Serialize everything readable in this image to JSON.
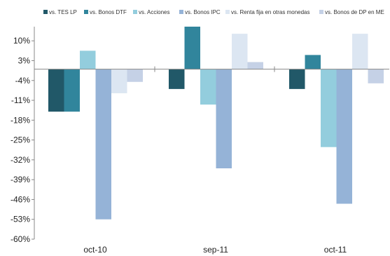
{
  "chart_data": {
    "type": "bar",
    "categories": [
      "oct-10",
      "sep-11",
      "oct-11"
    ],
    "series": [
      {
        "name": "vs. TES LP",
        "color": "#215868",
        "values": [
          -15,
          -7,
          -7
        ]
      },
      {
        "name": "vs. Bonos DTF",
        "color": "#31859c",
        "values": [
          -15,
          15,
          5
        ]
      },
      {
        "name": "vs. Acciones",
        "color": "#93cddd",
        "values": [
          6.5,
          -12.5,
          -27.5
        ]
      },
      {
        "name": "vs. Bonos IPC",
        "color": "#95b3d7",
        "values": [
          -53,
          -35,
          -47.5
        ]
      },
      {
        "name": "vs. Renta fija en otras monedas",
        "color": "#dce6f2",
        "values": [
          -8.5,
          12.5,
          12.5
        ]
      },
      {
        "name": "vs. Bonos de DP en ME",
        "color": "#c5d1e6",
        "values": [
          -4.5,
          2.5,
          -5
        ]
      }
    ],
    "yticks": [
      10,
      3,
      -4,
      -11,
      -18,
      -25,
      -32,
      -39,
      -46,
      -53,
      -60
    ],
    "ytick_labels": [
      "10%",
      "3%",
      "-4%",
      "-11%",
      "-18%",
      "-25%",
      "-32%",
      "-39%",
      "-46%",
      "-53%",
      "-60%"
    ],
    "ylim": [
      -60,
      15
    ],
    "title": "",
    "xlabel": "",
    "ylabel": "",
    "legend_position": "top",
    "grid": false
  }
}
